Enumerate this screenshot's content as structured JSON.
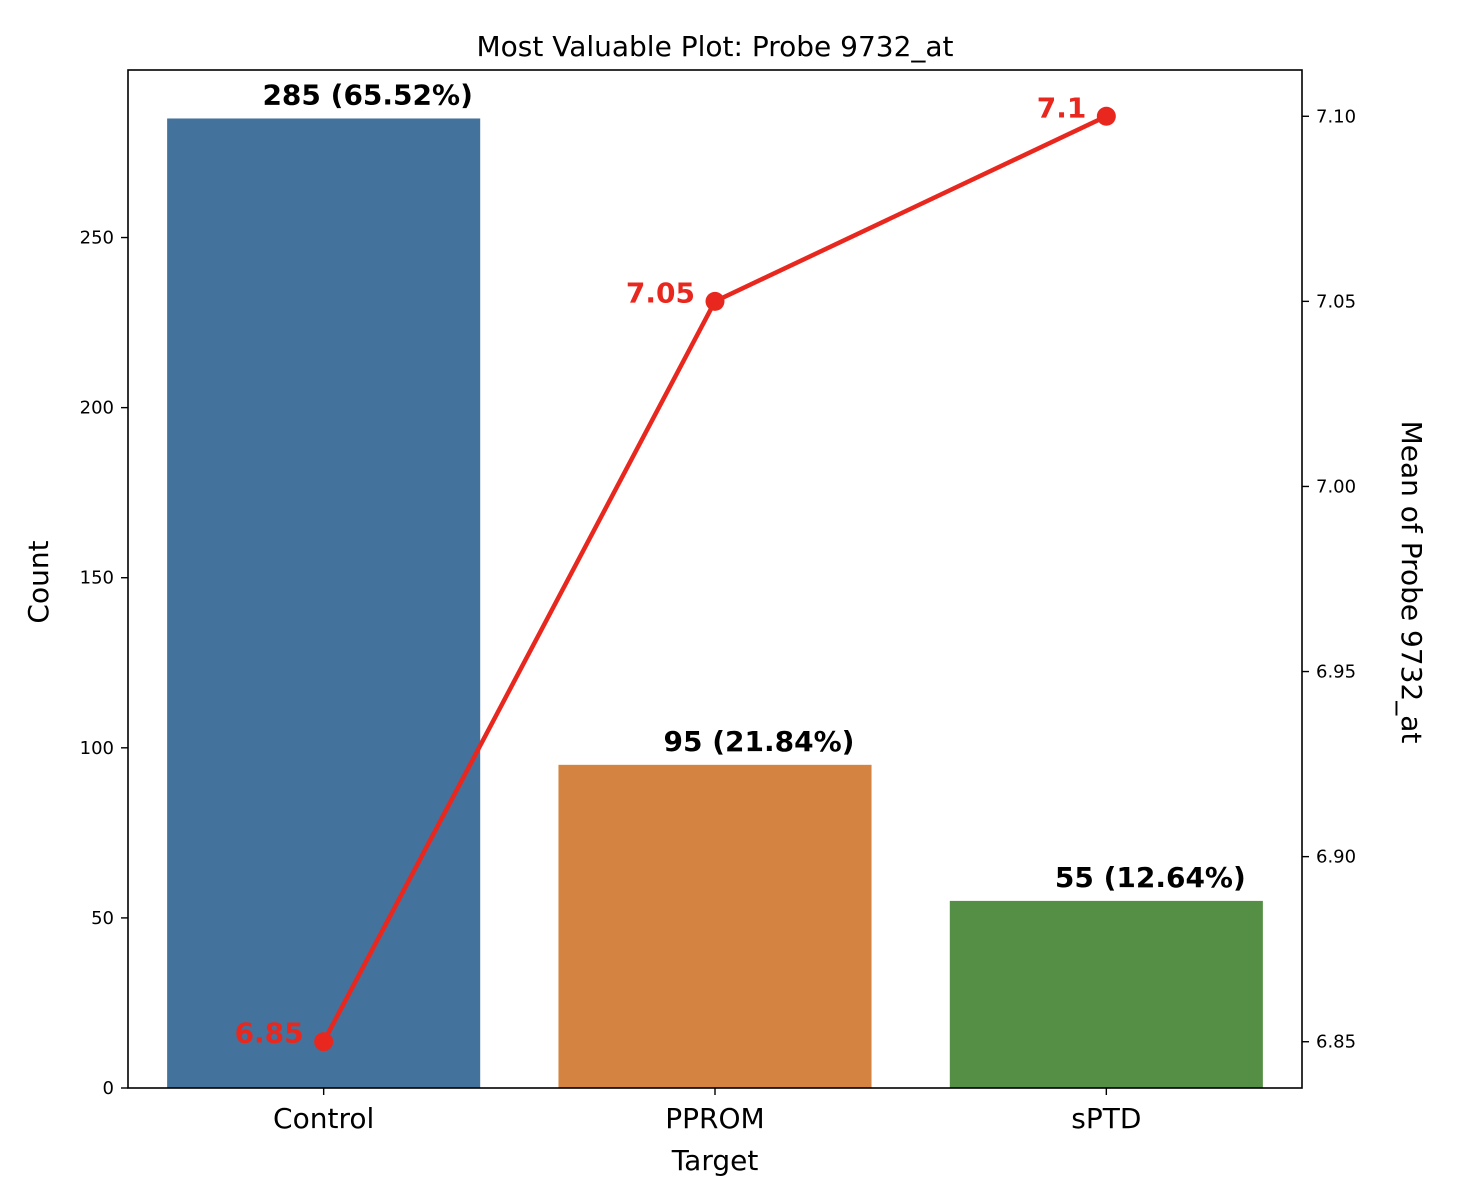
{
  "chart_data": {
    "type": "bar",
    "title": "Most Valuable Plot: Probe 9732_at",
    "xlabel": "Target",
    "ylabel": "Count",
    "y2label": "Mean of Probe 9732_at",
    "categories": [
      "Control",
      "PPROM",
      "sPTD"
    ],
    "bars": {
      "values": [
        285,
        95,
        55
      ],
      "labels": [
        "285 (65.52%)",
        "95 (21.84%)",
        "55 (12.64%)"
      ],
      "colors": [
        "#43729c",
        "#d48440",
        "#548f45"
      ]
    },
    "line": {
      "type": "line",
      "values": [
        6.85,
        7.05,
        7.1
      ],
      "labels": [
        "6.85",
        "7.05",
        "7.1"
      ],
      "color": "#e8281e"
    },
    "ylim": [
      0,
      299.25
    ],
    "y2lim": [
      6.8375,
      7.1125
    ],
    "yticks": [
      0,
      50,
      100,
      150,
      200,
      250
    ],
    "ytick_labels": [
      "0",
      "50",
      "100",
      "150",
      "200",
      "250"
    ],
    "y2ticks": [
      6.85,
      6.9,
      6.95,
      7.0,
      7.05,
      7.1
    ],
    "y2tick_labels": [
      "6.85",
      "6.90",
      "6.95",
      "7.00",
      "7.05",
      "7.10"
    ],
    "grid": false
  }
}
